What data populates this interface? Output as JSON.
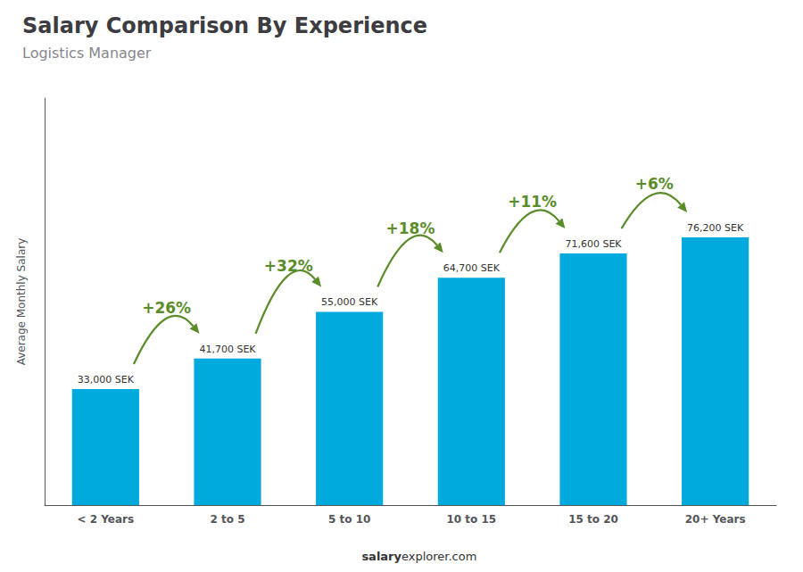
{
  "chart_data": {
    "type": "bar",
    "title": "Salary Comparison By Experience",
    "subtitle": "Logistics Manager",
    "categories": [
      "< 2 Years",
      "2 to 5",
      "5 to 10",
      "10 to 15",
      "15 to 20",
      "20+ Years"
    ],
    "values": [
      33000,
      41700,
      55000,
      64700,
      71600,
      76200
    ],
    "value_labels": [
      "33,000 SEK",
      "41,700 SEK",
      "55,000 SEK",
      "64,700 SEK",
      "71,600 SEK",
      "76,200 SEK"
    ],
    "data_labels": true,
    "color": "#00aadd",
    "ylabel": "Average Monthly Salary",
    "ylim": [
      0,
      115824
    ],
    "grid": false,
    "tick_labels": "x",
    "annotations": [
      {
        "text": "+26%",
        "from": "< 2 Years",
        "to": "2 to 5"
      },
      {
        "text": "+32%",
        "from": "2 to 5",
        "to": "5 to 10"
      },
      {
        "text": "+18%",
        "from": "5 to 10",
        "to": "10 to 15"
      },
      {
        "text": "+11%",
        "from": "10 to 15",
        "to": "15 to 20"
      },
      {
        "text": "+6%",
        "from": "15 to 20",
        "to": "20+ Years"
      }
    ],
    "footer": [
      "salary",
      "explorer.com"
    ]
  }
}
